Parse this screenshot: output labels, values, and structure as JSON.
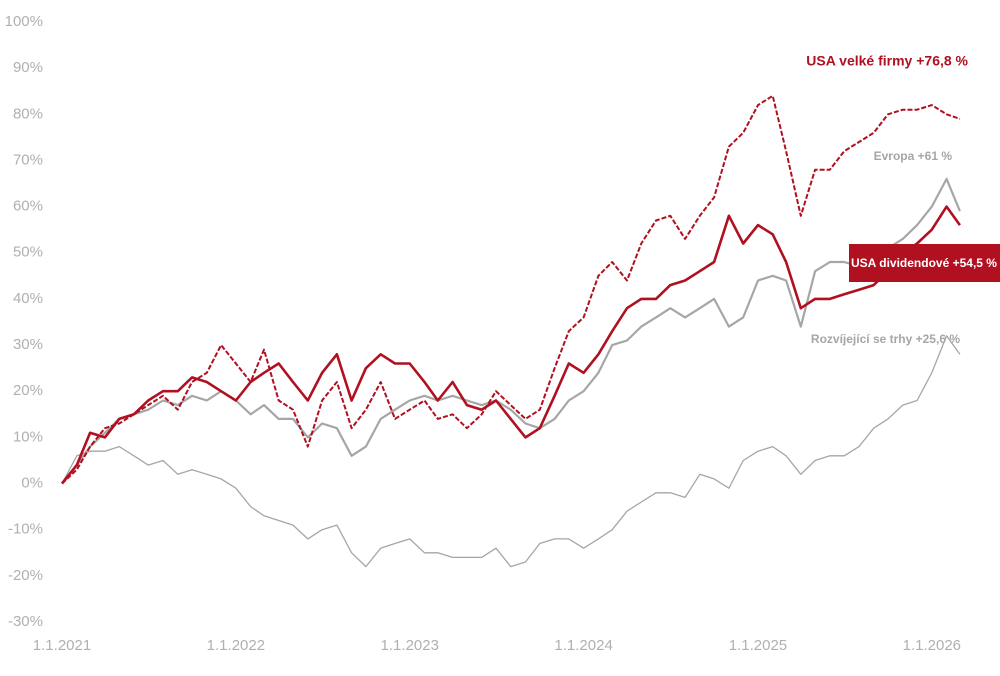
{
  "chart_data": {
    "type": "line",
    "x": [
      "2021-01-01",
      "2021-02-01",
      "2021-03-01",
      "2021-04-01",
      "2021-05-01",
      "2021-06-01",
      "2021-07-01",
      "2021-08-01",
      "2021-09-01",
      "2021-10-01",
      "2021-11-01",
      "2021-12-01",
      "2022-01-01",
      "2022-02-01",
      "2022-03-01",
      "2022-04-01",
      "2022-05-01",
      "2022-06-01",
      "2022-07-01",
      "2022-08-01",
      "2022-09-01",
      "2022-10-01",
      "2022-11-01",
      "2022-12-01",
      "2023-01-01",
      "2023-02-01",
      "2023-03-01",
      "2023-04-01",
      "2023-05-01",
      "2023-06-01",
      "2023-07-01",
      "2023-08-01",
      "2023-09-01",
      "2023-10-01",
      "2023-11-01",
      "2023-12-01",
      "2024-01-01",
      "2024-02-01",
      "2024-03-01",
      "2024-04-01",
      "2024-05-01",
      "2024-06-01",
      "2024-07-01",
      "2024-08-01",
      "2024-09-01",
      "2024-10-01",
      "2024-11-01",
      "2024-12-01",
      "2025-01-01",
      "2025-02-01",
      "2025-03-01",
      "2025-04-01",
      "2025-05-01",
      "2025-06-01",
      "2025-07-01",
      "2025-08-01",
      "2025-09-01",
      "2025-10-01",
      "2025-11-01",
      "2025-12-01",
      "2026-01-01",
      "2026-02-01",
      "2026-03-01"
    ],
    "series": [
      {
        "name": "Rozvíjející se trhy +25,6 %",
        "color": "#a6a6a6",
        "values": [
          0,
          6,
          7,
          7,
          8,
          6,
          4,
          5,
          2,
          3,
          2,
          1,
          -1,
          -5,
          -7,
          -8,
          -9,
          -12,
          -10,
          -9,
          -15,
          -18,
          -14,
          -13,
          -12,
          -15,
          -15,
          -16,
          -16,
          -16,
          -14,
          -18,
          -17,
          -13,
          -12,
          -12,
          -14,
          -12,
          -10,
          -6,
          -4,
          -2,
          -2,
          -3,
          2,
          1,
          -1,
          5,
          7,
          8,
          6,
          2,
          5,
          6,
          6,
          8,
          12,
          14,
          17,
          18,
          24,
          32,
          28
        ]
      },
      {
        "name": "Evropa +61 %",
        "color": "#a6a6a6",
        "values": [
          0,
          4,
          8,
          11,
          14,
          15,
          16,
          18,
          17,
          19,
          18,
          20,
          18,
          15,
          17,
          14,
          14,
          10,
          13,
          12,
          6,
          8,
          14,
          16,
          18,
          19,
          18,
          19,
          18,
          17,
          18,
          16,
          13,
          12,
          14,
          18,
          20,
          24,
          30,
          31,
          34,
          36,
          38,
          36,
          38,
          40,
          34,
          36,
          44,
          45,
          44,
          34,
          46,
          48,
          48,
          47,
          50,
          51,
          53,
          56,
          60,
          66,
          59
        ]
      },
      {
        "name": "USA velké firmy +76,8 %",
        "color": "#b01020",
        "dashed": true,
        "values": [
          0,
          3,
          8,
          12,
          13,
          15,
          17,
          19,
          16,
          22,
          24,
          30,
          26,
          22,
          29,
          18,
          16,
          8,
          18,
          22,
          12,
          16,
          22,
          14,
          16,
          18,
          14,
          15,
          12,
          15,
          20,
          17,
          14,
          16,
          25,
          33,
          36,
          45,
          48,
          44,
          52,
          57,
          58,
          53,
          58,
          62,
          73,
          76,
          82,
          84,
          72,
          58,
          68,
          68,
          72,
          74,
          76,
          80,
          81,
          81,
          82,
          80,
          79
        ]
      },
      {
        "name": "USA dividendové +54,5 %",
        "color": "#b01020",
        "boxed": true,
        "values": [
          0,
          4,
          11,
          10,
          14,
          15,
          18,
          20,
          20,
          23,
          22,
          20,
          18,
          22,
          24,
          26,
          22,
          18,
          24,
          28,
          18,
          25,
          28,
          26,
          26,
          22,
          18,
          22,
          17,
          16,
          18,
          14,
          10,
          12,
          19,
          26,
          24,
          28,
          33,
          38,
          40,
          40,
          43,
          44,
          46,
          48,
          58,
          52,
          56,
          54,
          48,
          38,
          40,
          40,
          41,
          42,
          43,
          46,
          50,
          52,
          55,
          60,
          56
        ]
      }
    ],
    "xlim": [
      "2021-01-01",
      "2026-05-01"
    ],
    "xticks": [
      {
        "value": "2021-01-01",
        "label": "1.1.2021"
      },
      {
        "value": "2022-01-01",
        "label": "1.1.2022"
      },
      {
        "value": "2023-01-01",
        "label": "1.1.2023"
      },
      {
        "value": "2024-01-01",
        "label": "1.1.2024"
      },
      {
        "value": "2025-01-01",
        "label": "1.1.2025"
      },
      {
        "value": "2026-01-01",
        "label": "1.1.2026"
      }
    ],
    "ylim": [
      -30,
      100
    ],
    "yticks": [
      {
        "value": -30,
        "label": "-30%"
      },
      {
        "value": -20,
        "label": "-20%"
      },
      {
        "value": -10,
        "label": "-10%"
      },
      {
        "value": 0,
        "label": "0%"
      },
      {
        "value": 10,
        "label": "10%"
      },
      {
        "value": 20,
        "label": "20%"
      },
      {
        "value": 30,
        "label": "30%"
      },
      {
        "value": 40,
        "label": "40%"
      },
      {
        "value": 50,
        "label": "50%"
      },
      {
        "value": 60,
        "label": "60%"
      },
      {
        "value": 70,
        "label": "70%"
      },
      {
        "value": 80,
        "label": "80%"
      },
      {
        "value": 90,
        "label": "90%"
      },
      {
        "value": 100,
        "label": "100%"
      }
    ],
    "grid": false
  }
}
